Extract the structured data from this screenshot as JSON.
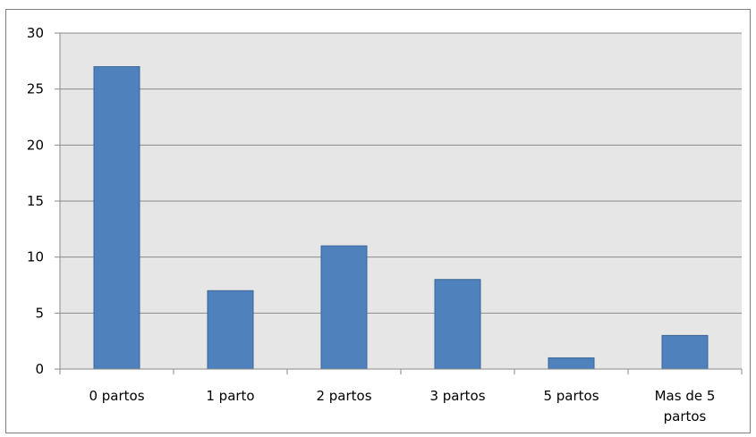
{
  "page_fragment": {
    "text": ""
  },
  "chart_data": {
    "type": "bar",
    "title": "",
    "xlabel": "",
    "ylabel": "",
    "categories": [
      "0 partos",
      "1 parto",
      "2 partos",
      "3 partos",
      "5 partos",
      [
        "Mas de 5",
        "partos"
      ]
    ],
    "values": [
      27,
      7,
      11,
      8,
      1,
      3
    ],
    "ylim": [
      0,
      30
    ],
    "yticks": [
      0,
      5,
      10,
      15,
      20,
      25,
      30
    ],
    "grid": true,
    "legend": "none",
    "colors": {
      "bar_fill": "#4f81bd",
      "bar_stroke": "#3a6595",
      "plot_background": "#e6e6e6",
      "gridline": "#8a8a8a",
      "axis": "#8a8a8a"
    }
  }
}
